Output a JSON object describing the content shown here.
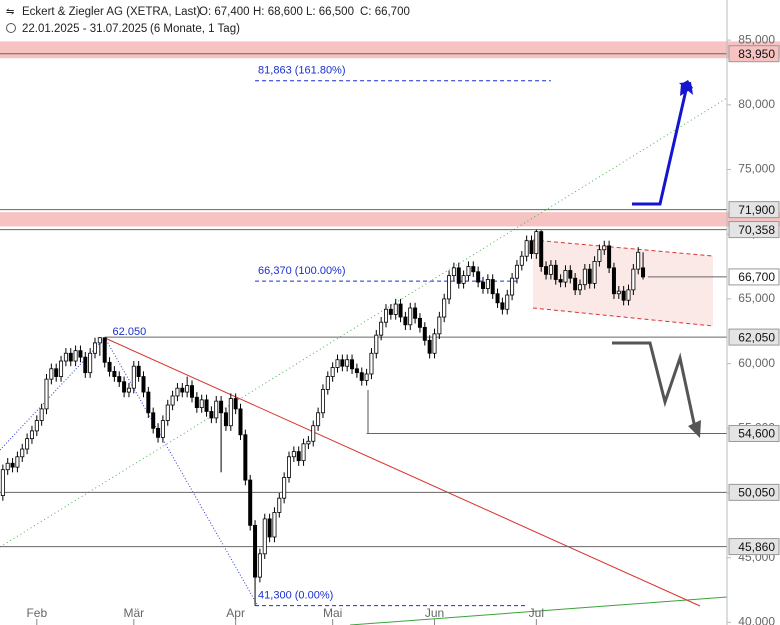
{
  "chart_data": {
    "type": "candlestick",
    "title": "Eckert & Ziegler AG (XETRA, Last)",
    "header_values": [
      "O: 67,400",
      "H: 68,600",
      "L: 66,500",
      "C: 66,700"
    ],
    "subtitle": "22.01.2025 - 31.07.2025",
    "period": "(6 Monate, 1 Tag)",
    "up_color": "#ffffff",
    "down_color": "#000000",
    "ylim": [
      39800,
      88100
    ],
    "yticks": [
      {
        "value": 40000,
        "label": "40,000"
      },
      {
        "value": 45000,
        "label": "45,000"
      },
      {
        "value": 50000,
        "label": "50,000"
      },
      {
        "value": 55000,
        "label": "55,000"
      },
      {
        "value": 60000,
        "label": "60,000"
      },
      {
        "value": 65000,
        "label": "65,000"
      },
      {
        "value": 70000,
        "label": "70,000"
      },
      {
        "value": 75000,
        "label": "75,000"
      },
      {
        "value": 80000,
        "label": "80,000"
      },
      {
        "value": 85000,
        "label": "85,000"
      }
    ],
    "xticks": [
      {
        "value": 8,
        "label": "Feb"
      },
      {
        "value": 28,
        "label": "Mär"
      },
      {
        "value": 49,
        "label": "Apr"
      },
      {
        "value": 69,
        "label": "Mai"
      },
      {
        "value": 90,
        "label": "Jun"
      },
      {
        "value": 111,
        "label": "Jul"
      }
    ],
    "zones": [
      {
        "range": [
          83600,
          84900
        ],
        "color": "#f6c2c2"
      },
      {
        "range": [
          70600,
          71700
        ],
        "color": "#f6c2c2"
      }
    ],
    "levels": [
      {
        "value": 83950,
        "label": "83,950",
        "from": 0,
        "box": "#f6c2c2"
      },
      {
        "value": 71900,
        "label": "71,900",
        "from": 0,
        "box": "#e4e4e4"
      },
      {
        "value": 70358,
        "label": "70,358",
        "from": 0,
        "box": "#e4e4e4"
      },
      {
        "value": 66700,
        "label": "66,700",
        "from": 134,
        "box": "#ffffff"
      },
      {
        "value": 62050,
        "label": "62,050",
        "from": 22,
        "box": "#e4e4e4"
      },
      {
        "value": 54600,
        "label": "54,600",
        "from": 76,
        "box": "#e4e4e4"
      },
      {
        "value": 50050,
        "label": "50,050",
        "from": 0,
        "box": "#e4e4e4"
      },
      {
        "value": 45860,
        "label": "45,860",
        "from": 0,
        "box": "#e4e4e4"
      }
    ],
    "fib_levels": [
      {
        "value": 81863,
        "label": "81,863 (161.80%)",
        "from": 53,
        "to": 114
      },
      {
        "value": 66370,
        "label": "66,370 (100.00%)",
        "from": 53,
        "to": 107
      },
      {
        "value": 41300,
        "label": "41,300 (0.00%)",
        "from": 53,
        "to": 109
      }
    ],
    "annotations": [
      {
        "value": 62050,
        "label": "62.050",
        "at": 23
      }
    ],
    "candles": [
      [
        50800,
        51200,
        49400,
        49800
      ],
      [
        49800,
        52200,
        49400,
        51800
      ],
      [
        51800,
        52700,
        51400,
        52300
      ],
      [
        52300,
        52700,
        51600,
        52000
      ],
      [
        52000,
        53200,
        51600,
        52800
      ],
      [
        52800,
        53800,
        52400,
        53400
      ],
      [
        53400,
        54600,
        53000,
        54200
      ],
      [
        54200,
        55200,
        53800,
        54800
      ],
      [
        54800,
        56000,
        54400,
        55600
      ],
      [
        55600,
        56900,
        55200,
        56500
      ],
      [
        56500,
        59200,
        56100,
        58800
      ],
      [
        58800,
        60000,
        58400,
        59600
      ],
      [
        59600,
        60000,
        58600,
        59000
      ],
      [
        59000,
        60600,
        58600,
        60200
      ],
      [
        60200,
        61200,
        59800,
        60800
      ],
      [
        60800,
        61200,
        59800,
        60200
      ],
      [
        60200,
        61400,
        59800,
        61000
      ],
      [
        61000,
        61400,
        60100,
        60500
      ],
      [
        60500,
        60900,
        58900,
        59300
      ],
      [
        59300,
        61200,
        58900,
        60800
      ],
      [
        60800,
        62000,
        60400,
        61600
      ],
      [
        61600,
        62050,
        60600,
        62000
      ],
      [
        62000,
        62000,
        59700,
        60100
      ],
      [
        60100,
        60500,
        59000,
        59400
      ],
      [
        59400,
        59800,
        58600,
        59000
      ],
      [
        59000,
        59400,
        58200,
        58600
      ],
      [
        58600,
        59000,
        57400,
        57800
      ],
      [
        57800,
        58500,
        57400,
        58100
      ],
      [
        58100,
        60200,
        57700,
        59800
      ],
      [
        59800,
        60200,
        58600,
        59000
      ],
      [
        59000,
        59400,
        57400,
        57800
      ],
      [
        57800,
        58200,
        55800,
        56200
      ],
      [
        56200,
        56600,
        54600,
        55000
      ],
      [
        55000,
        55400,
        53900,
        54300
      ],
      [
        54300,
        56000,
        53900,
        55600
      ],
      [
        55600,
        57200,
        55200,
        56800
      ],
      [
        56800,
        57900,
        56400,
        57500
      ],
      [
        57500,
        58500,
        57100,
        58100
      ],
      [
        58100,
        58500,
        57400,
        57800
      ],
      [
        57800,
        59000,
        57400,
        58300
      ],
      [
        58300,
        58700,
        57000,
        57400
      ],
      [
        57400,
        57800,
        56200,
        56600
      ],
      [
        56600,
        57600,
        56200,
        57200
      ],
      [
        57200,
        57600,
        55900,
        56300
      ],
      [
        56300,
        56700,
        55400,
        55800
      ],
      [
        55800,
        57500,
        55400,
        57100
      ],
      [
        57100,
        57500,
        51600,
        56200
      ],
      [
        56200,
        56600,
        54800,
        55200
      ],
      [
        55200,
        57700,
        54800,
        57300
      ],
      [
        57300,
        57700,
        56100,
        56500
      ],
      [
        56500,
        56900,
        54100,
        54500
      ],
      [
        54500,
        54900,
        50600,
        51000
      ],
      [
        51000,
        51400,
        47100,
        47500
      ],
      [
        47500,
        47900,
        41300,
        43500
      ],
      [
        43500,
        45700,
        43100,
        45300
      ],
      [
        45300,
        48400,
        44900,
        48000
      ],
      [
        48000,
        48400,
        46200,
        46600
      ],
      [
        46600,
        48900,
        46200,
        48500
      ],
      [
        48500,
        50000,
        48100,
        49600
      ],
      [
        49600,
        51600,
        49200,
        51200
      ],
      [
        51200,
        53200,
        50800,
        52800
      ],
      [
        52800,
        53600,
        52400,
        53200
      ],
      [
        53200,
        53600,
        52100,
        52500
      ],
      [
        52500,
        54200,
        52100,
        53800
      ],
      [
        53800,
        54400,
        53400,
        54000
      ],
      [
        54000,
        55600,
        53600,
        55200
      ],
      [
        55200,
        56600,
        54800,
        56200
      ],
      [
        56200,
        58400,
        55800,
        58000
      ],
      [
        58000,
        59400,
        57600,
        59000
      ],
      [
        59000,
        60100,
        58600,
        59700
      ],
      [
        59700,
        60700,
        59300,
        60300
      ],
      [
        60300,
        60700,
        59400,
        59800
      ],
      [
        59800,
        60700,
        59400,
        60300
      ],
      [
        60300,
        60700,
        59200,
        59600
      ],
      [
        59600,
        60000,
        58900,
        59300
      ],
      [
        59300,
        59700,
        58300,
        58700
      ],
      [
        58700,
        59600,
        58300,
        59200
      ],
      [
        59200,
        61200,
        58800,
        60800
      ],
      [
        60800,
        62600,
        60400,
        62200
      ],
      [
        62200,
        63600,
        61800,
        63200
      ],
      [
        63200,
        64600,
        62800,
        64200
      ],
      [
        64200,
        64600,
        63400,
        63800
      ],
      [
        63800,
        65000,
        63400,
        64600
      ],
      [
        64600,
        65000,
        63200,
        63600
      ],
      [
        63600,
        64000,
        62600,
        63000
      ],
      [
        63000,
        64700,
        62600,
        64300
      ],
      [
        64300,
        64700,
        63100,
        63500
      ],
      [
        63500,
        63900,
        62400,
        62800
      ],
      [
        62800,
        63200,
        61400,
        61800
      ],
      [
        61800,
        62200,
        60400,
        60800
      ],
      [
        60800,
        62700,
        60400,
        62300
      ],
      [
        62300,
        64000,
        61900,
        63600
      ],
      [
        63600,
        65400,
        63200,
        65000
      ],
      [
        65000,
        67200,
        64600,
        66800
      ],
      [
        66800,
        67800,
        66400,
        67400
      ],
      [
        67400,
        67800,
        65800,
        66200
      ],
      [
        66200,
        67200,
        65800,
        66800
      ],
      [
        66800,
        67900,
        66400,
        67500
      ],
      [
        67500,
        67900,
        66700,
        67100
      ],
      [
        67100,
        67500,
        65900,
        66300
      ],
      [
        66300,
        66700,
        65400,
        65800
      ],
      [
        65800,
        66900,
        65400,
        66500
      ],
      [
        66500,
        66900,
        65000,
        65400
      ],
      [
        65400,
        65800,
        64300,
        64700
      ],
      [
        64700,
        65100,
        63800,
        64200
      ],
      [
        64200,
        65700,
        63800,
        65300
      ],
      [
        65300,
        67000,
        64900,
        66600
      ],
      [
        66600,
        68000,
        66200,
        67600
      ],
      [
        67600,
        68700,
        67200,
        68300
      ],
      [
        68300,
        69900,
        67900,
        69500
      ],
      [
        69500,
        69900,
        68100,
        68500
      ],
      [
        68500,
        70358,
        68100,
        70200
      ],
      [
        70200,
        70300,
        67100,
        67500
      ],
      [
        67500,
        67900,
        66500,
        66900
      ],
      [
        66900,
        68000,
        66500,
        67600
      ],
      [
        67600,
        68000,
        66100,
        66500
      ],
      [
        66500,
        66900,
        65900,
        66300
      ],
      [
        66300,
        67600,
        65900,
        67200
      ],
      [
        67200,
        67600,
        66200,
        66600
      ],
      [
        66600,
        67000,
        65300,
        65700
      ],
      [
        65700,
        66500,
        65300,
        66100
      ],
      [
        66100,
        67700,
        65700,
        67300
      ],
      [
        67300,
        67700,
        65800,
        66200
      ],
      [
        66200,
        68300,
        65800,
        67900
      ],
      [
        67900,
        69200,
        67500,
        68800
      ],
      [
        68800,
        69500,
        68400,
        69100
      ],
      [
        69100,
        69500,
        67000,
        67400
      ],
      [
        67400,
        67800,
        65000,
        65400
      ],
      [
        65400,
        66000,
        65000,
        65600
      ],
      [
        65600,
        66000,
        64500,
        64900
      ],
      [
        64900,
        66100,
        64500,
        65700
      ],
      [
        65700,
        67700,
        65300,
        67300
      ],
      [
        67300,
        69000,
        66900,
        68600
      ],
      [
        67400,
        68600,
        66500,
        66700
      ]
    ]
  }
}
